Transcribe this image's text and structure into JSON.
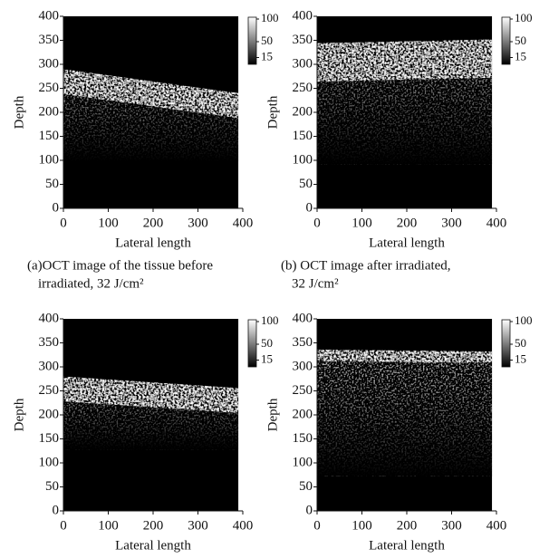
{
  "chart_data": [
    {
      "type": "image",
      "xlabel": "Lateral length",
      "ylabel": "Depth",
      "xlim": [
        0,
        400
      ],
      "ylim": [
        0,
        400
      ],
      "xticks": [
        0,
        100,
        200,
        300,
        400
      ],
      "yticks": [
        0,
        50,
        100,
        150,
        200,
        250,
        300,
        350,
        400
      ],
      "colorbar_lim": [
        0,
        104
      ],
      "colorbar_ticks": [
        100,
        50,
        15
      ],
      "caption": [
        "(a)OCT image of the tissue before",
        "irradiated, 32 J/cm²"
      ]
    },
    {
      "type": "image",
      "xlabel": "Lateral length",
      "ylabel": "Depth",
      "xlim": [
        0,
        400
      ],
      "ylim": [
        0,
        400
      ],
      "xticks": [
        0,
        100,
        200,
        300,
        400
      ],
      "yticks": [
        0,
        50,
        100,
        150,
        200,
        250,
        300,
        350,
        400
      ],
      "colorbar_lim": [
        0,
        104
      ],
      "colorbar_ticks": [
        100,
        50,
        15
      ],
      "caption": [
        "(b) OCT image after irradiated,",
        "32 J/cm²"
      ]
    },
    {
      "type": "image",
      "xlabel": "Lateral length",
      "ylabel": "Depth",
      "xlim": [
        0,
        400
      ],
      "ylim": [
        0,
        400
      ],
      "xticks": [
        0,
        100,
        200,
        300,
        400
      ],
      "yticks": [
        0,
        50,
        100,
        150,
        200,
        250,
        300,
        350,
        400
      ],
      "colorbar_lim": [
        0,
        104
      ],
      "colorbar_ticks": [
        100,
        50,
        15
      ]
    },
    {
      "type": "image",
      "xlabel": "Lateral length",
      "ylabel": "Depth",
      "xlim": [
        0,
        400
      ],
      "ylim": [
        0,
        400
      ],
      "xticks": [
        0,
        100,
        200,
        300,
        400
      ],
      "yticks": [
        0,
        50,
        100,
        150,
        200,
        250,
        300,
        350,
        400
      ],
      "colorbar_lim": [
        0,
        104
      ],
      "colorbar_ticks": [
        100,
        50,
        15
      ]
    }
  ]
}
